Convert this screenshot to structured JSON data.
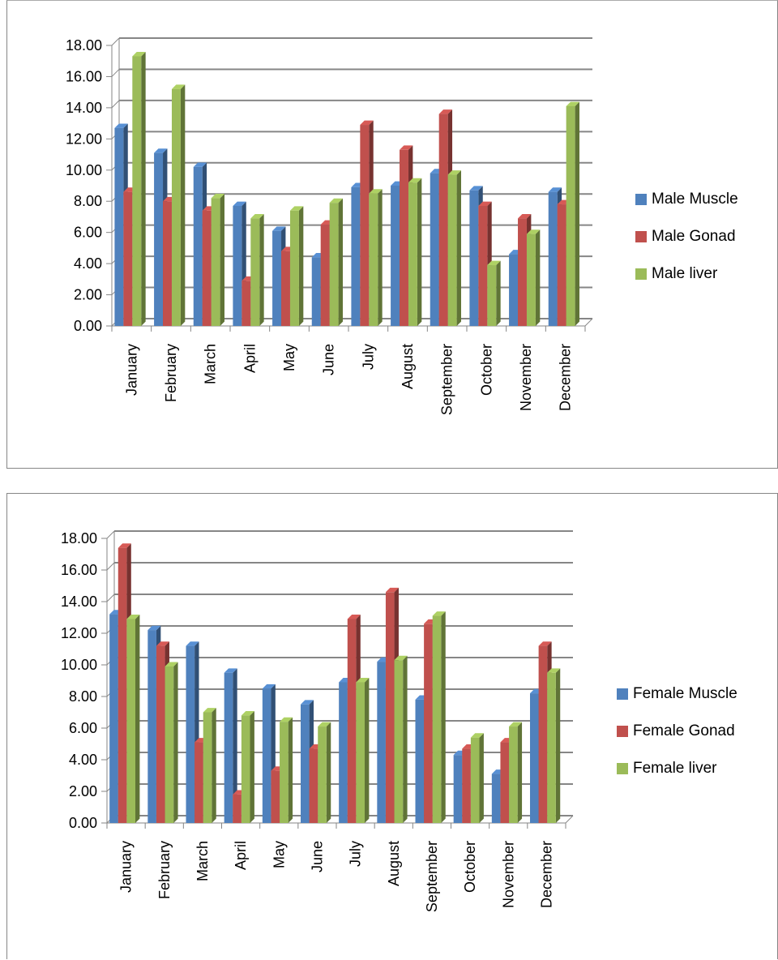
{
  "chart_data": [
    {
      "type": "bar",
      "categories": [
        "January",
        "February",
        "March",
        "April",
        "May",
        "June",
        "July",
        "August",
        "September",
        "October",
        "November",
        "December"
      ],
      "ylim": [
        0,
        18
      ],
      "ytick_step": 2,
      "ytick_labels": [
        "0.00",
        "2.00",
        "4.00",
        "6.00",
        "8.00",
        "10.00",
        "12.00",
        "14.00",
        "16.00",
        "18.00"
      ],
      "grid": true,
      "legend_position": "right",
      "series": [
        {
          "name": "Male Muscle",
          "color": "#4f81bd",
          "values": [
            12.7,
            11.1,
            10.2,
            7.7,
            6.1,
            4.4,
            8.9,
            9.0,
            9.8,
            8.7,
            4.6,
            8.6
          ]
        },
        {
          "name": "Male Gonad",
          "color": "#c0504d",
          "values": [
            8.6,
            8.0,
            7.4,
            2.9,
            4.8,
            6.5,
            12.9,
            11.3,
            13.6,
            7.7,
            6.9,
            7.8
          ]
        },
        {
          "name": "Male liver",
          "color": "#9bbb59",
          "values": [
            17.3,
            15.2,
            8.2,
            6.9,
            7.4,
            7.9,
            8.5,
            9.2,
            9.7,
            3.9,
            5.9,
            14.1
          ]
        }
      ]
    },
    {
      "type": "bar",
      "categories": [
        "January",
        "February",
        "March",
        "April",
        "May",
        "June",
        "July",
        "August",
        "September",
        "October",
        "November",
        "December"
      ],
      "ylim": [
        0,
        18
      ],
      "ytick_step": 2,
      "ytick_labels": [
        "0.00",
        "2.00",
        "4.00",
        "6.00",
        "8.00",
        "10.00",
        "12.00",
        "14.00",
        "16.00",
        "18.00"
      ],
      "grid": true,
      "legend_position": "right",
      "series": [
        {
          "name": "Female Muscle",
          "color": "#4f81bd",
          "values": [
            13.2,
            12.2,
            11.2,
            9.5,
            8.5,
            7.5,
            8.9,
            10.2,
            7.8,
            4.3,
            3.1,
            8.2
          ]
        },
        {
          "name": "Female Gonad",
          "color": "#c0504d",
          "values": [
            17.4,
            11.2,
            5.1,
            1.8,
            3.3,
            4.7,
            12.9,
            14.6,
            12.6,
            4.7,
            5.1,
            11.2
          ]
        },
        {
          "name": "Female liver",
          "color": "#9bbb59",
          "values": [
            12.9,
            9.9,
            7.0,
            6.8,
            6.4,
            6.1,
            8.9,
            10.3,
            13.1,
            5.4,
            6.1,
            9.5
          ]
        }
      ]
    }
  ]
}
